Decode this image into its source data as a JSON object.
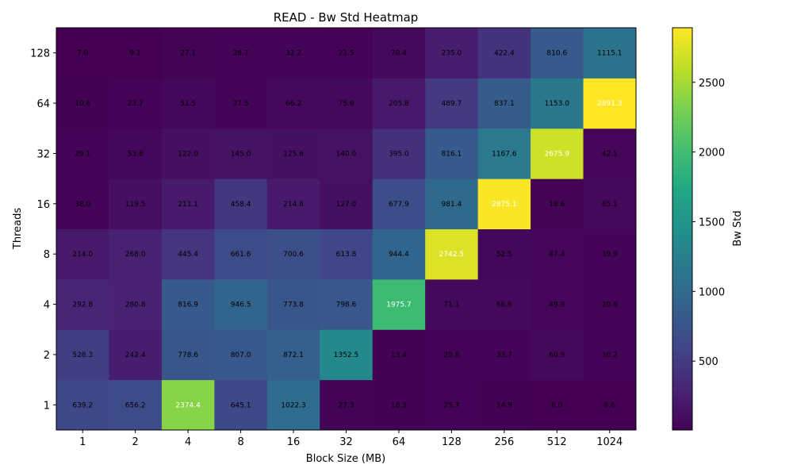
{
  "chart_data": {
    "type": "heatmap",
    "title": "READ - Bw Std Heatmap",
    "xlabel": "Block Size (MB)",
    "ylabel": "Threads",
    "x_categories": [
      "1",
      "2",
      "4",
      "8",
      "16",
      "32",
      "64",
      "128",
      "256",
      "512",
      "1024"
    ],
    "y_categories": [
      "1",
      "2",
      "4",
      "8",
      "16",
      "32",
      "64",
      "128"
    ],
    "values": [
      [
        639.2,
        656.2,
        2374.4,
        645.1,
        1022.3,
        27.3,
        18.3,
        25.7,
        14.9,
        6.0,
        6.6
      ],
      [
        528.3,
        242.4,
        778.6,
        807.0,
        872.1,
        1352.5,
        13.4,
        20.8,
        33.7,
        60.9,
        30.2
      ],
      [
        292.8,
        280.8,
        816.9,
        946.5,
        773.8,
        798.6,
        1975.7,
        71.1,
        66.6,
        49.9,
        20.6
      ],
      [
        214.0,
        268.0,
        445.4,
        661.6,
        700.6,
        613.8,
        944.4,
        2742.5,
        52.5,
        47.4,
        39.9
      ],
      [
        38.0,
        119.5,
        211.1,
        458.4,
        214.6,
        127.0,
        677.9,
        981.4,
        2875.1,
        18.6,
        65.1
      ],
      [
        29.1,
        53.8,
        122.0,
        145.0,
        125.6,
        140.0,
        395.0,
        816.1,
        1167.6,
        2675.9,
        42.1
      ],
      [
        10.6,
        23.7,
        51.5,
        37.5,
        66.2,
        75.6,
        205.8,
        489.7,
        837.1,
        1153.0,
        2891.3
      ],
      [
        7.0,
        9.1,
        27.1,
        28.7,
        32.2,
        21.5,
        70.4,
        235.0,
        422.4,
        810.6,
        1115.1
      ]
    ],
    "colormap": "viridis",
    "colorbar": {
      "label": "Bw Std",
      "vmin": 6.0,
      "vmax": 2891.3,
      "ticks": [
        500,
        1000,
        1500,
        2000,
        2500
      ]
    }
  }
}
